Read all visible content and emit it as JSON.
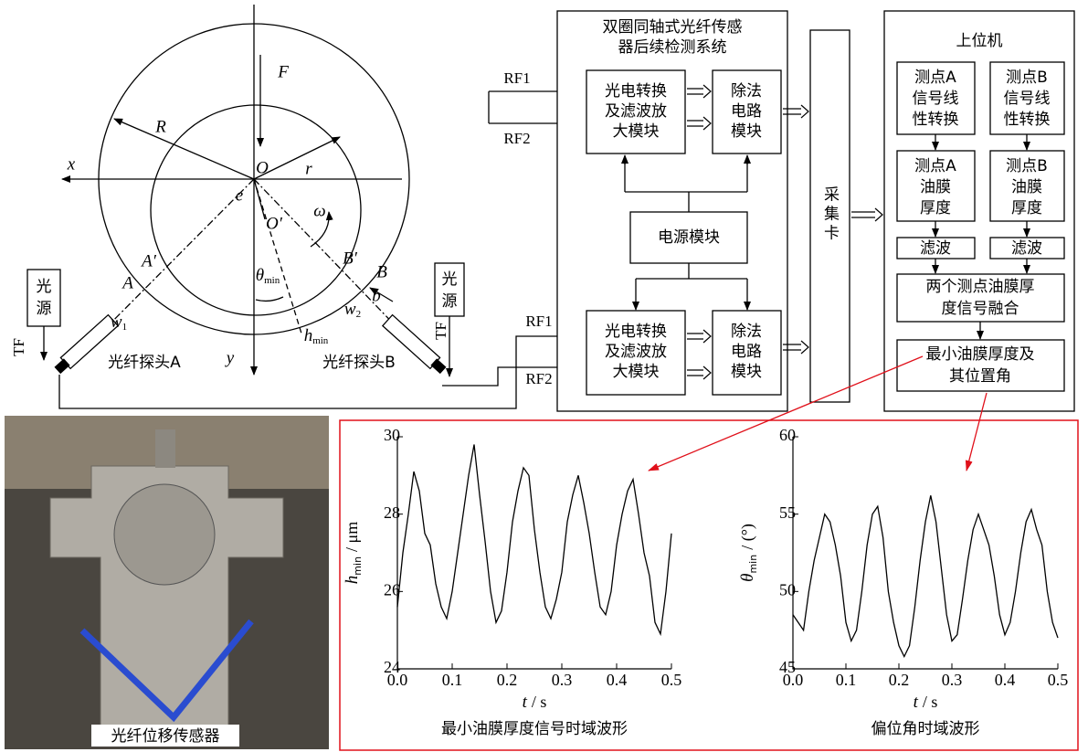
{
  "mechanism": {
    "force": "F",
    "outer_radius": "R",
    "x_axis": "x",
    "center": "O",
    "inner_radius": "r",
    "eccentricity": "e",
    "journal_center": "O′",
    "omega": "ω",
    "a_prime": "A′",
    "a_point": "A",
    "b_prime": "B′",
    "b_point": "B",
    "b_gap": "b",
    "w1": {
      "main": "w",
      "sub": "1"
    },
    "w2": {
      "main": "w",
      "sub": "2"
    },
    "theta": {
      "main": "θ",
      "sub": "min"
    },
    "h": {
      "main": "h",
      "sub": "min"
    },
    "y_axis": "y",
    "light_a": [
      "光",
      "源"
    ],
    "light_b": [
      "光",
      "源"
    ],
    "tf_a": "TF",
    "tf_b": "TF",
    "probe_a": "光纤探头A",
    "probe_b": "光纤探头B"
  },
  "signals": [
    "RF1",
    "RF2",
    "RF1",
    "RF2"
  ],
  "system": {
    "title": [
      "双圈同轴式光纤传感",
      "器后续检测系统"
    ],
    "converter_upper": [
      "光电转换",
      "及滤波放",
      "大模块"
    ],
    "divider_upper": [
      "除法",
      "电路",
      "模块"
    ],
    "power": "电源模块",
    "converter_lower": [
      "光电转换",
      "及滤波放",
      "大模块"
    ],
    "divider_lower": [
      "除法",
      "电路",
      "模块"
    ]
  },
  "daq": "采集卡",
  "host": {
    "title": "上位机",
    "convert_a": [
      "测点A",
      "信号线",
      "性转换"
    ],
    "convert_b": [
      "测点B",
      "信号线",
      "性转换"
    ],
    "thickness_a": [
      "测点A",
      "油膜",
      "厚度"
    ],
    "thickness_b": [
      "测点B",
      "油膜",
      "厚度"
    ],
    "filter_a": "滤波",
    "filter_b": "滤波",
    "fusion": [
      "两个测点油膜厚",
      "度信号融合"
    ],
    "result": [
      "最小油膜厚度及",
      "其位置角"
    ]
  },
  "photo_label": "光纤位移传感器",
  "chart_data": [
    {
      "type": "line",
      "caption": "最小油膜厚度信号时域波形",
      "x_label": "t",
      "x_label_unit": "/ s",
      "y_label": "h",
      "y_label_sub": "min",
      "y_label_unit": "/ μm",
      "color": "#000000",
      "xlim": [
        0,
        0.5
      ],
      "xticks": [
        {
          "value": 0,
          "label": "0.0"
        },
        0.1,
        0.2,
        0.3,
        0.4,
        0.5
      ],
      "ylim": [
        24,
        30
      ],
      "yticks": [
        24,
        26,
        28,
        30
      ],
      "x": [
        0,
        0.01,
        0.02,
        0.03,
        0.04,
        0.05,
        0.06,
        0.07,
        0.08,
        0.09,
        0.1,
        0.11,
        0.12,
        0.13,
        0.14,
        0.15,
        0.16,
        0.17,
        0.18,
        0.19,
        0.2,
        0.21,
        0.22,
        0.23,
        0.24,
        0.25,
        0.26,
        0.27,
        0.28,
        0.29,
        0.3,
        0.31,
        0.32,
        0.33,
        0.34,
        0.35,
        0.36,
        0.37,
        0.38,
        0.39,
        0.4,
        0.41,
        0.42,
        0.43,
        0.44,
        0.45,
        0.46,
        0.47,
        0.48,
        0.49,
        0.5
      ],
      "values": [
        25.6,
        27.0,
        28.0,
        29.1,
        28.6,
        27.5,
        27.2,
        26.2,
        25.6,
        25.3,
        26.0,
        27.0,
        28.0,
        29.0,
        29.8,
        28.5,
        27.3,
        26.0,
        25.2,
        25.5,
        26.5,
        27.8,
        28.6,
        29.2,
        29.0,
        27.6,
        26.5,
        25.6,
        25.3,
        25.8,
        26.5,
        27.8,
        28.5,
        29.0,
        28.3,
        27.5,
        26.5,
        25.6,
        25.4,
        26.0,
        27.2,
        28.0,
        28.6,
        28.9,
        28.0,
        27.0,
        26.4,
        25.2,
        24.9,
        26.0,
        27.5
      ]
    },
    {
      "type": "line",
      "caption": "偏位角时域波形",
      "x_label": "t",
      "x_label_unit": "/ s",
      "y_label": "θ",
      "y_label_sub": "min",
      "y_label_unit": "/ (°)",
      "color": "#000000",
      "xlim": [
        0,
        0.5
      ],
      "xticks": [
        {
          "value": 0,
          "label": "0.0"
        },
        0.1,
        0.2,
        0.3,
        0.4,
        0.5
      ],
      "ylim": [
        45,
        60
      ],
      "yticks": [
        45,
        50,
        55,
        60
      ],
      "x": [
        0,
        0.01,
        0.02,
        0.03,
        0.04,
        0.05,
        0.06,
        0.07,
        0.08,
        0.09,
        0.1,
        0.11,
        0.12,
        0.13,
        0.14,
        0.15,
        0.16,
        0.17,
        0.18,
        0.19,
        0.2,
        0.21,
        0.22,
        0.23,
        0.24,
        0.25,
        0.26,
        0.27,
        0.28,
        0.29,
        0.3,
        0.31,
        0.32,
        0.33,
        0.34,
        0.35,
        0.36,
        0.37,
        0.38,
        0.39,
        0.4,
        0.41,
        0.42,
        0.43,
        0.44,
        0.45,
        0.46,
        0.47,
        0.48,
        0.49,
        0.5
      ],
      "values": [
        48.5,
        48,
        47.5,
        50,
        52,
        53.5,
        55,
        54.5,
        53,
        51,
        48,
        46.8,
        47.5,
        50,
        53,
        55,
        55.5,
        53.5,
        50,
        48,
        46.5,
        45.8,
        46.5,
        49,
        52,
        54.5,
        56.2,
        54.5,
        51.5,
        48.5,
        46.8,
        47.2,
        49.5,
        52,
        54,
        55,
        54,
        53,
        51,
        48.5,
        47.2,
        48,
        50,
        52.5,
        54.5,
        55.3,
        54,
        53,
        50,
        48,
        47
      ]
    }
  ]
}
